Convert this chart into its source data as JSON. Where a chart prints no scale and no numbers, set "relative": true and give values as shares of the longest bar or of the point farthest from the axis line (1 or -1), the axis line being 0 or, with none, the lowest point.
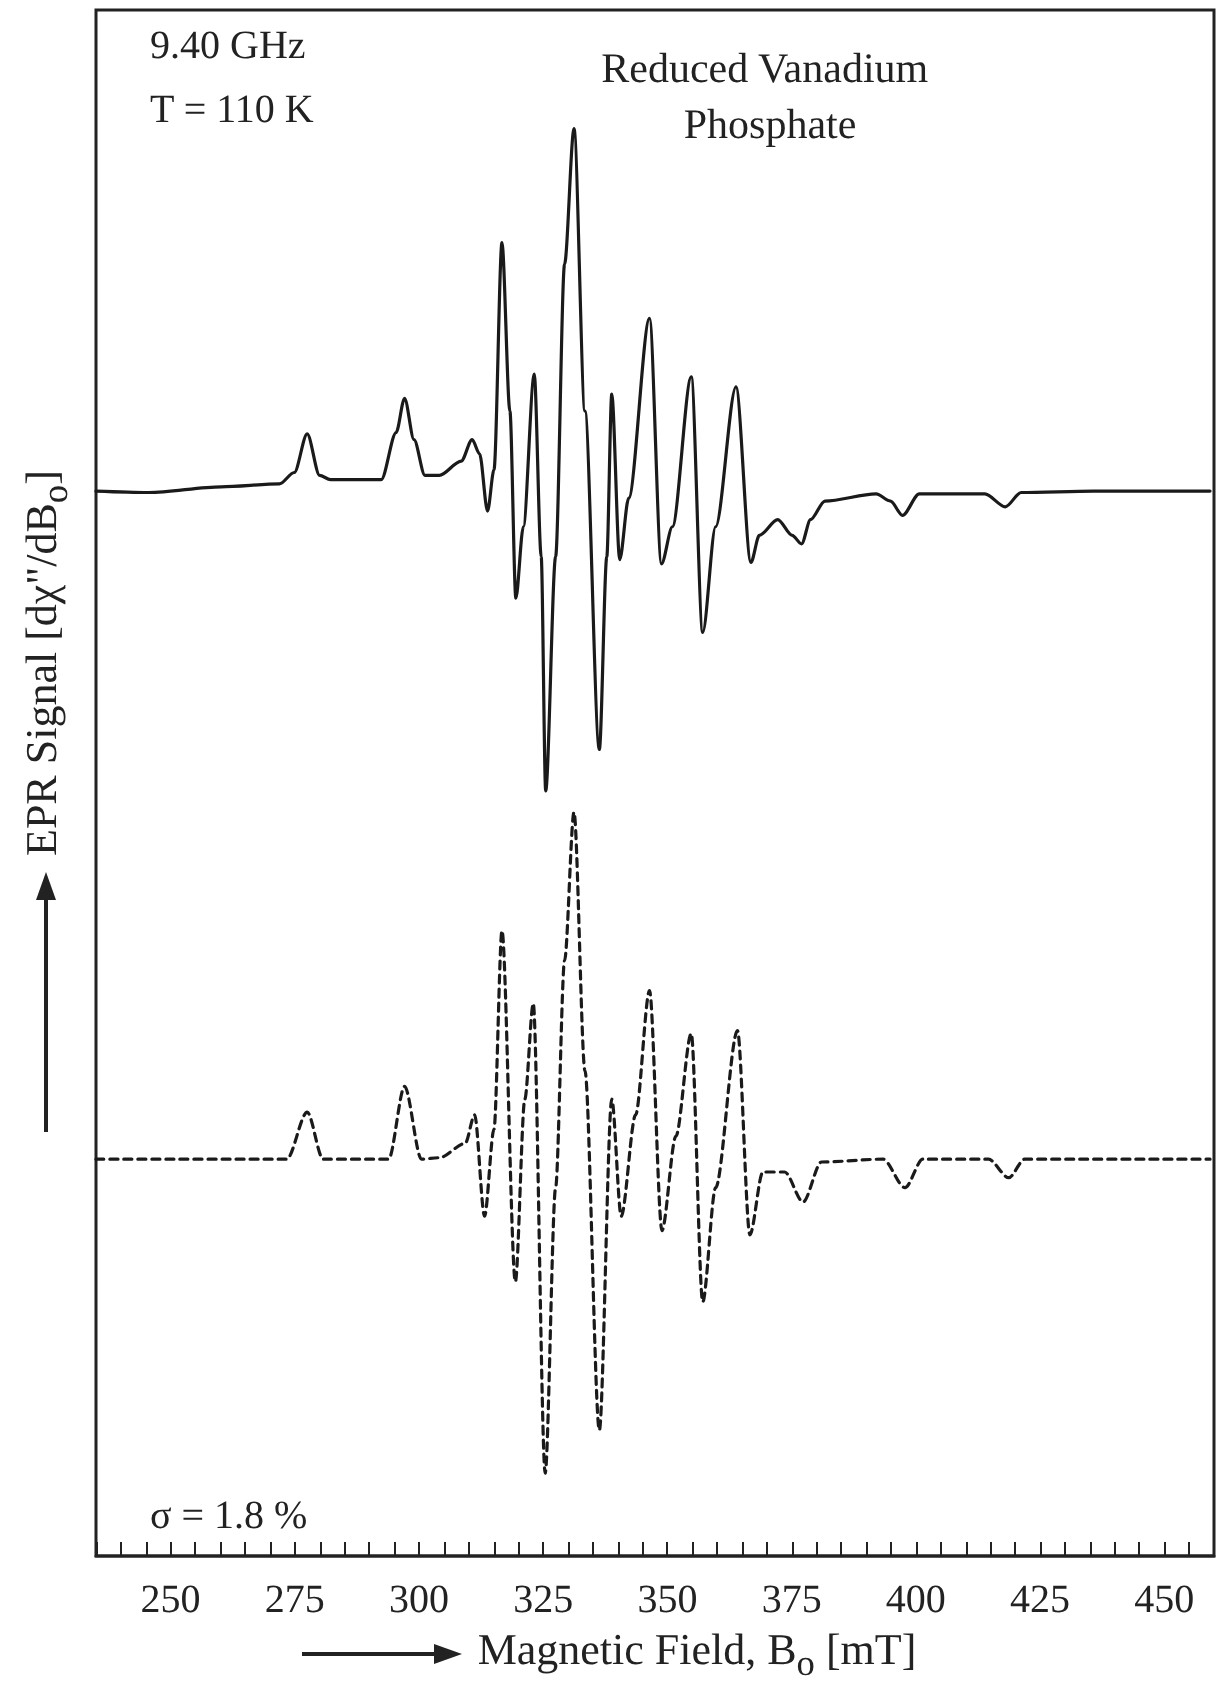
{
  "chart_data": {
    "type": "line",
    "relative": true,
    "title": "Reduced Vanadium Phosphate",
    "xlabel": "Magnetic Field, B$_{o}$ [mT]",
    "ylabel": "EPR Signal [dχ\"/dB$_{o}$]",
    "annotations": [
      "9.40 GHz",
      "T = 110 K",
      "σ = 1.8 %"
    ],
    "xlim": [
      235,
      460
    ],
    "xticks": [
      {
        "value": 235,
        "label": null
      },
      {
        "value": 240,
        "label": null
      },
      {
        "value": 245,
        "label": null
      },
      250,
      {
        "value": 255,
        "label": null
      },
      {
        "value": 260,
        "label": null
      },
      {
        "value": 265,
        "label": null
      },
      {
        "value": 270,
        "label": null
      },
      275,
      {
        "value": 280,
        "label": null
      },
      {
        "value": 285,
        "label": null
      },
      {
        "value": 290,
        "label": null
      },
      {
        "value": 295,
        "label": null
      },
      300,
      {
        "value": 305,
        "label": null
      },
      {
        "value": 310,
        "label": null
      },
      {
        "value": 315,
        "label": null
      },
      {
        "value": 320,
        "label": null
      },
      325,
      {
        "value": 330,
        "label": null
      },
      {
        "value": 335,
        "label": null
      },
      {
        "value": 340,
        "label": null
      },
      {
        "value": 345,
        "label": null
      },
      350,
      {
        "value": 355,
        "label": null
      },
      {
        "value": 360,
        "label": null
      },
      {
        "value": 365,
        "label": null
      },
      {
        "value": 370,
        "label": null
      },
      375,
      {
        "value": 380,
        "label": null
      },
      {
        "value": 385,
        "label": null
      },
      {
        "value": 390,
        "label": null
      },
      {
        "value": 395,
        "label": null
      },
      400,
      {
        "value": 405,
        "label": null
      },
      {
        "value": 410,
        "label": null
      },
      {
        "value": 415,
        "label": null
      },
      {
        "value": 420,
        "label": null
      },
      425,
      {
        "value": 430,
        "label": null
      },
      {
        "value": 435,
        "label": null
      },
      {
        "value": 440,
        "label": null
      },
      {
        "value": 445,
        "label": null
      },
      450,
      {
        "value": 455,
        "label": null
      }
    ],
    "marker": "none",
    "series": [
      {
        "color": "#1a1a1a",
        "line_style": "solid",
        "x": [
          235,
          245.6,
          260.2,
          271.9,
          274.9,
          277.5,
          280.0,
          282.2,
          292.4,
          295.4,
          297.1,
          299.0,
          301.2,
          304.1,
          308.5,
          310.7,
          312.2,
          313.8,
          315.1,
          316.7,
          318.3,
          319.5,
          321.0,
          323.2,
          324.6,
          325.5,
          327.5,
          329.3,
          331.2,
          333.4,
          336.3,
          337.8,
          338.8,
          340.4,
          342.2,
          346.4,
          348.8,
          351.0,
          354.8,
          357.1,
          359.7,
          363.8,
          366.8,
          368.5,
          372.2,
          375.1,
          377.0,
          378.8,
          381.7,
          392.0,
          394.9,
          397.3,
          400.7,
          413.9,
          418.0,
          421.2,
          435.8,
          459.2
        ],
        "values": [
          0.746,
          0.745,
          0.749,
          0.751,
          0.759,
          0.786,
          0.757,
          0.754,
          0.754,
          0.787,
          0.811,
          0.782,
          0.757,
          0.757,
          0.767,
          0.782,
          0.772,
          0.732,
          0.761,
          0.92,
          0.802,
          0.671,
          0.721,
          0.828,
          0.7,
          0.536,
          0.7,
          0.905,
          1.0,
          0.802,
          0.565,
          0.7,
          0.814,
          0.698,
          0.741,
          0.867,
          0.695,
          0.721,
          0.826,
          0.647,
          0.721,
          0.819,
          0.696,
          0.715,
          0.726,
          0.715,
          0.709,
          0.726,
          0.739,
          0.744,
          0.739,
          0.729,
          0.744,
          0.744,
          0.735,
          0.745,
          0.746,
          0.746
        ]
      },
      {
        "color": "#1a1a1a",
        "line_style": "dashed",
        "x": [
          235,
          273.4,
          277.5,
          280.7,
          293.9,
          297.1,
          300.5,
          304.1,
          309.3,
          311.2,
          313.2,
          315.1,
          316.7,
          319.4,
          321.3,
          323.0,
          325.4,
          327.5,
          329.3,
          331.2,
          333.4,
          336.3,
          338.8,
          340.7,
          343.6,
          346.4,
          348.9,
          351.7,
          354.8,
          357.1,
          359.7,
          364.1,
          366.6,
          369.2,
          373.6,
          377.3,
          381.0,
          393.4,
          397.8,
          401.4,
          414.6,
          418.7,
          421.9,
          459.2
        ],
        "values": [
          0.278,
          0.278,
          0.311,
          0.278,
          0.278,
          0.329,
          0.278,
          0.279,
          0.289,
          0.309,
          0.238,
          0.299,
          0.438,
          0.192,
          0.32,
          0.387,
          0.058,
          0.258,
          0.417,
          0.521,
          0.34,
          0.088,
          0.32,
          0.238,
          0.309,
          0.396,
          0.228,
          0.294,
          0.366,
          0.178,
          0.258,
          0.368,
          0.225,
          0.269,
          0.269,
          0.248,
          0.276,
          0.278,
          0.258,
          0.278,
          0.278,
          0.265,
          0.278,
          0.278
        ]
      }
    ]
  }
}
